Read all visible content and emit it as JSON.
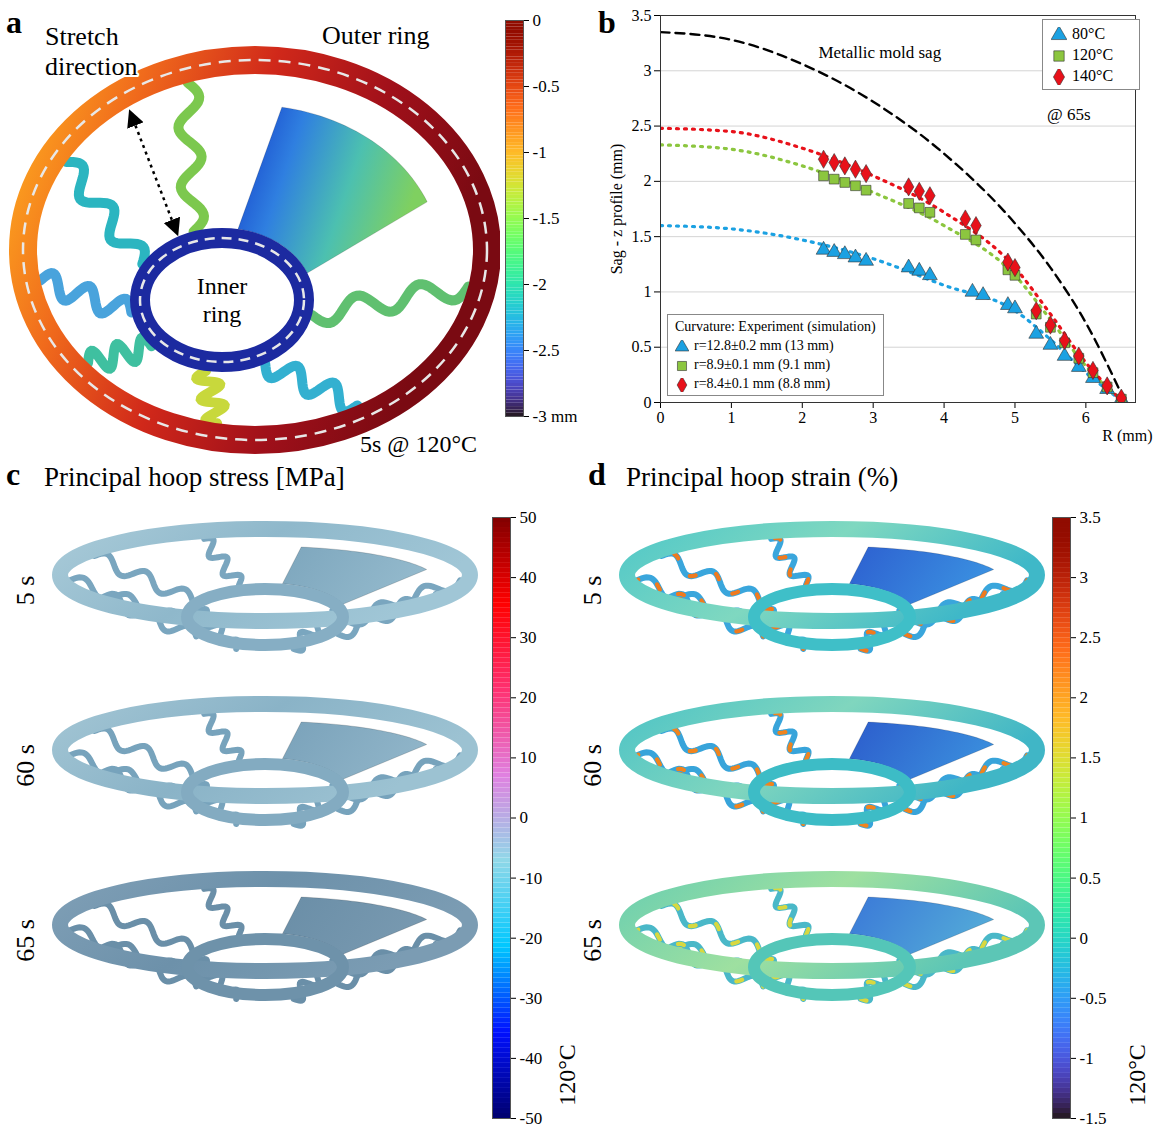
{
  "chart_data": [
    {
      "panel": "a",
      "type": "contour",
      "annotations": [
        "Stretch direction",
        "Outer ring",
        "Inner ring",
        "5s @ 120°C"
      ],
      "colorbar": {
        "range": [
          -3,
          0
        ],
        "ticks": [
          0,
          -0.5,
          -1,
          -1.5,
          -2,
          -2.5,
          {
            "value": -3,
            "label": "-3 mm"
          }
        ]
      }
    },
    {
      "panel": "b",
      "type": "scatter",
      "x_label": "R (mm)",
      "y_label": "Sag - z profile (mm)",
      "xlim": [
        0,
        6.7
      ],
      "xticks": [
        0,
        1,
        2,
        3,
        4,
        5,
        6
      ],
      "ylim": [
        0,
        3.5
      ],
      "yticks": [
        0,
        0.5,
        1,
        1.5,
        2,
        2.5,
        3,
        3.5
      ],
      "grid": true,
      "legend": "top-right",
      "annotations": [
        "@ 65s"
      ],
      "curvature_title": "Curvature: Experiment (simulation)",
      "series": [
        {
          "name": "Metallic mold sag",
          "type": "line",
          "line_style": "dashed",
          "color": "#000000",
          "x": [
            0,
            1,
            2,
            3,
            4,
            5,
            5.5,
            6,
            6.5
          ],
          "values": [
            3.35,
            3.28,
            3.06,
            2.72,
            2.25,
            1.62,
            1.22,
            0.72,
            0.08
          ]
        },
        {
          "name": "80°C",
          "type": "scatter",
          "marker": "triangle",
          "color": "#1ba1e2",
          "curvature": "r=12.8±0.2 mm (13 mm)",
          "x": [
            2.3,
            2.45,
            2.6,
            2.75,
            2.9,
            3.5,
            3.65,
            3.8,
            4.4,
            4.55,
            4.9,
            5.0,
            5.3,
            5.5,
            5.7,
            5.9,
            6.1,
            6.3,
            6.5
          ],
          "values": [
            1.38,
            1.36,
            1.34,
            1.31,
            1.28,
            1.22,
            1.19,
            1.15,
            1.0,
            0.97,
            0.88,
            0.85,
            0.62,
            0.52,
            0.42,
            0.32,
            0.22,
            0.12,
            0.03
          ],
          "line_style": "dotted",
          "fit_x": [
            0,
            1,
            2,
            3,
            4,
            5,
            5.5,
            6,
            6.5
          ],
          "fit_values": [
            1.6,
            1.57,
            1.47,
            1.3,
            1.06,
            0.83,
            0.57,
            0.27,
            0.02
          ]
        },
        {
          "name": "120°C",
          "type": "scatter",
          "marker": "square",
          "color": "#8cc63f",
          "curvature": "r=8.9±0.1 mm (9.1 mm)",
          "x": [
            2.3,
            2.45,
            2.6,
            2.75,
            2.9,
            3.5,
            3.65,
            3.8,
            4.3,
            4.45,
            4.9,
            5.0,
            5.3,
            5.5,
            5.7,
            5.9,
            6.1,
            6.3,
            6.5
          ],
          "values": [
            2.05,
            2.02,
            1.99,
            1.96,
            1.92,
            1.8,
            1.76,
            1.72,
            1.52,
            1.47,
            1.2,
            1.15,
            0.8,
            0.68,
            0.54,
            0.4,
            0.27,
            0.14,
            0.03
          ],
          "line_style": "dotted",
          "fit_x": [
            0,
            1,
            2,
            3,
            4,
            5,
            5.5,
            6,
            6.5
          ],
          "fit_values": [
            2.33,
            2.29,
            2.14,
            1.9,
            1.6,
            1.15,
            0.75,
            0.33,
            0.02
          ]
        },
        {
          "name": "140°C",
          "type": "scatter",
          "marker": "diamond",
          "color": "#e8111a",
          "curvature": "r=8.4±0.1 mm (8.8 mm)",
          "x": [
            2.3,
            2.45,
            2.6,
            2.75,
            2.9,
            3.5,
            3.65,
            3.8,
            4.3,
            4.45,
            4.9,
            5.0,
            5.3,
            5.5,
            5.7,
            5.9,
            6.1,
            6.3,
            6.5
          ],
          "values": [
            2.2,
            2.17,
            2.14,
            2.11,
            2.07,
            1.95,
            1.91,
            1.87,
            1.66,
            1.6,
            1.27,
            1.22,
            0.83,
            0.7,
            0.56,
            0.42,
            0.29,
            0.15,
            0.04
          ],
          "line_style": "dotted",
          "fit_x": [
            0,
            1,
            2,
            3,
            4,
            5,
            5.5,
            6,
            6.5
          ],
          "fit_values": [
            2.48,
            2.45,
            2.3,
            2.05,
            1.72,
            1.22,
            0.8,
            0.36,
            0.02
          ]
        }
      ]
    },
    {
      "panel": "c",
      "type": "contour",
      "title": "Principal hoop stress [MPa]",
      "rows": [
        "5 s",
        "60 s",
        "65 s"
      ],
      "colorbar": {
        "range": [
          -50,
          50
        ],
        "ticks": [
          50,
          40,
          30,
          20,
          10,
          0,
          -10,
          -20,
          -30,
          -40,
          -50
        ],
        "label": "120°C"
      }
    },
    {
      "panel": "d",
      "type": "contour",
      "title": "Principal hoop strain (%)",
      "rows": [
        "5 s",
        "60 s",
        "65 s"
      ],
      "colorbar": {
        "range": [
          -1.5,
          3.5
        ],
        "ticks": [
          3.5,
          3,
          2.5,
          2,
          1.5,
          1,
          0.5,
          0,
          -0.5,
          -1,
          -1.5
        ],
        "label": "120°C"
      }
    }
  ]
}
